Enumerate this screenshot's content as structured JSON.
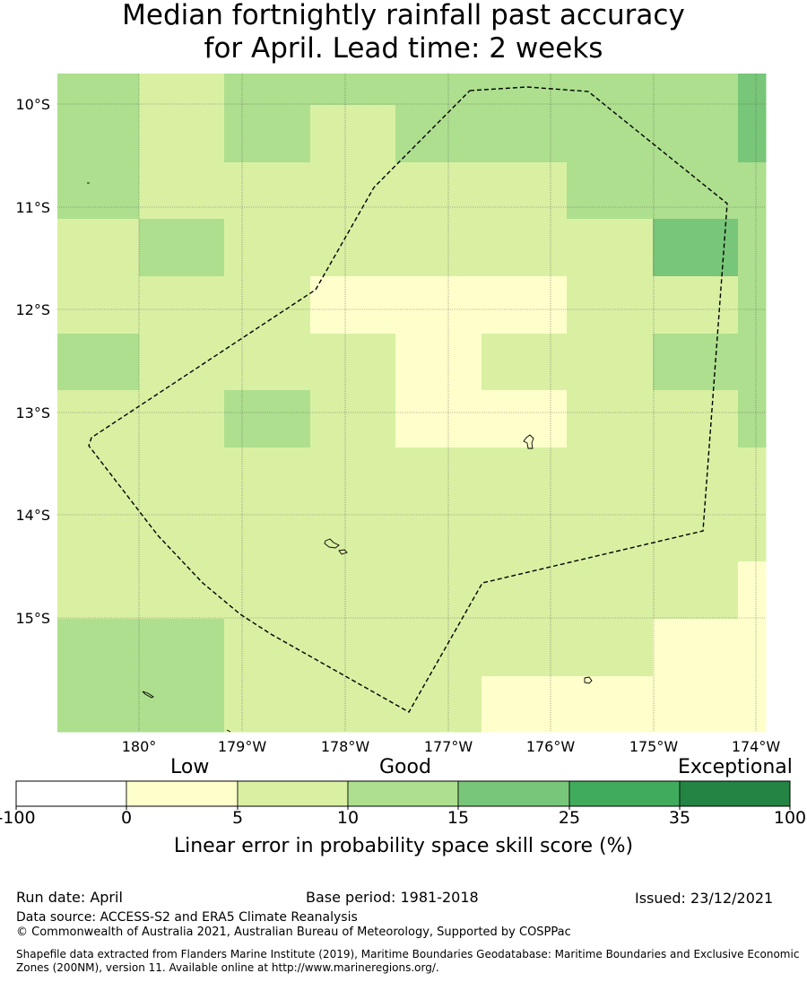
{
  "title": {
    "line1": "Median fortnightly rainfall past accuracy",
    "line2": "for April. Lead time: 2 weeks"
  },
  "map": {
    "lat_labels": [
      "10°S",
      "11°S",
      "12°S",
      "13°S",
      "14°S",
      "15°S"
    ],
    "lon_labels": [
      "180°",
      "179°W",
      "178°W",
      "177°W",
      "176°W",
      "175°W",
      "174°W"
    ],
    "grid_colors": [
      [
        "#addf8e",
        "#d9f0a3",
        "#addf8e",
        "#addf8e",
        "#addf8e",
        "#addf8e",
        "#addf8e",
        "#addf8e",
        "#78c679"
      ],
      [
        "#addf8e",
        "#d9f0a3",
        "#addf8e",
        "#d9f0a3",
        "#addf8e",
        "#addf8e",
        "#addf8e",
        "#addf8e",
        "#78c679"
      ],
      [
        "#addf8e",
        "#d9f0a3",
        "#d9f0a3",
        "#d9f0a3",
        "#d9f0a3",
        "#d9f0a3",
        "#addf8e",
        "#addf8e",
        "#addf8e"
      ],
      [
        "#d9f0a3",
        "#addf8e",
        "#d9f0a3",
        "#d9f0a3",
        "#d9f0a3",
        "#d9f0a3",
        "#d9f0a3",
        "#78c679",
        "#addf8e"
      ],
      [
        "#d9f0a3",
        "#d9f0a3",
        "#d9f0a3",
        "#ffffcc",
        "#ffffcc",
        "#ffffcc",
        "#d9f0a3",
        "#d9f0a3",
        "#addf8e"
      ],
      [
        "#addf8e",
        "#d9f0a3",
        "#d9f0a3",
        "#d9f0a3",
        "#ffffcc",
        "#d9f0a3",
        "#d9f0a3",
        "#addf8e",
        "#addf8e"
      ],
      [
        "#d9f0a3",
        "#d9f0a3",
        "#addf8e",
        "#d9f0a3",
        "#ffffcc",
        "#ffffcc",
        "#d9f0a3",
        "#d9f0a3",
        "#addf8e"
      ],
      [
        "#d9f0a3",
        "#d9f0a3",
        "#d9f0a3",
        "#d9f0a3",
        "#d9f0a3",
        "#d9f0a3",
        "#d9f0a3",
        "#d9f0a3",
        "#d9f0a3"
      ],
      [
        "#d9f0a3",
        "#d9f0a3",
        "#d9f0a3",
        "#d9f0a3",
        "#d9f0a3",
        "#d9f0a3",
        "#d9f0a3",
        "#d9f0a3",
        "#d9f0a3"
      ],
      [
        "#d9f0a3",
        "#d9f0a3",
        "#d9f0a3",
        "#d9f0a3",
        "#d9f0a3",
        "#d9f0a3",
        "#d9f0a3",
        "#d9f0a3",
        "#ffffcc"
      ],
      [
        "#addf8e",
        "#addf8e",
        "#d9f0a3",
        "#d9f0a3",
        "#d9f0a3",
        "#d9f0a3",
        "#d9f0a3",
        "#ffffcc",
        "#ffffcc"
      ],
      [
        "#addf8e",
        "#addf8e",
        "#d9f0a3",
        "#d9f0a3",
        "#d9f0a3",
        "#ffffcc",
        "#ffffcc",
        "#ffffcc",
        "#ffffcc"
      ]
    ]
  },
  "colorbar": {
    "category_words": [
      "Low",
      "Good",
      "Exceptional"
    ],
    "ticks": [
      "-100",
      "0",
      "5",
      "10",
      "15",
      "25",
      "35",
      "100"
    ],
    "colors": [
      "#ffffff",
      "#ffffcc",
      "#d9f0a3",
      "#addf8e",
      "#78c679",
      "#41ab5d",
      "#238443"
    ],
    "xlabel": "Linear error in probability space skill score (%)"
  },
  "footer": {
    "run_date": "Run date: April",
    "base_period": "Base period: 1981-2018",
    "issued": "Issued: 23/12/2021",
    "data_source": "Data source: ACCESS-S2 and ERA5 Climate Reanalysis",
    "copyright": "© Commonwealth of Australia 2021, Australian Bureau of Meteorology, Supported by COSPPac",
    "shapefile": "Shapefile data extracted from Flanders Marine Institute (2019), Maritime Boundaries Geodatabase: Maritime Boundaries and Exclusive Economic Zones (200NM), version 11. Available online at http://www.marineregions.org/."
  }
}
